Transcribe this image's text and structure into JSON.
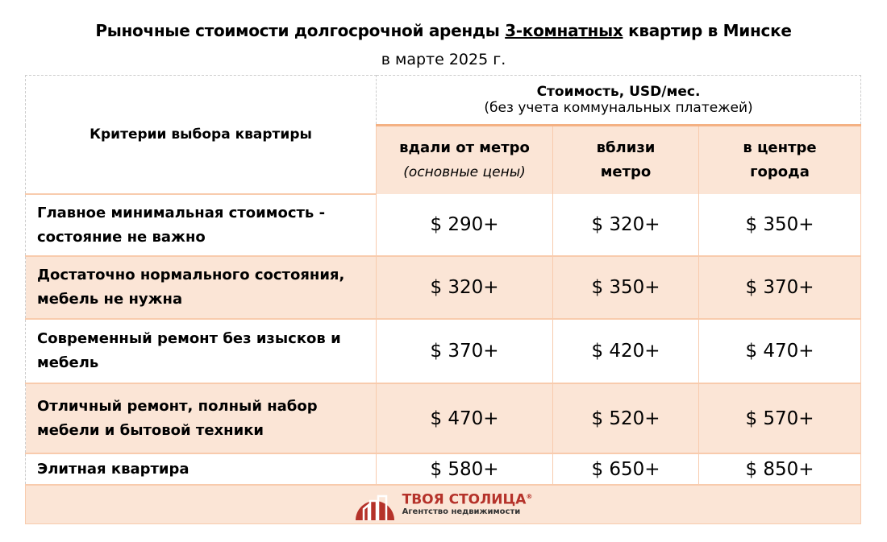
{
  "title": {
    "before": "Рыночные стоимости долгосрочной аренды ",
    "underlined": "3-комнатных",
    "after": " квартир в Минске"
  },
  "subtitle": "в марте 2025 г.",
  "header": {
    "criteria": "Критерии выбора квартиры",
    "price_title": "Стоимость, USD/мес.",
    "price_note": "(без учета коммунальных платежей)",
    "columns": [
      {
        "line1": "вдали от метро",
        "line2": "(основные цены)"
      },
      {
        "line1": "вблизи",
        "line2": "метро"
      },
      {
        "line1": "в центре",
        "line2": "города"
      }
    ]
  },
  "rows": [
    {
      "criteria": "Главное минимальная стоимость - состояние не важно",
      "prices": [
        "$ 290+",
        "$ 320+",
        "$ 350+"
      ]
    },
    {
      "criteria": "Достаточно нормального состояния, мебель не нужна",
      "prices": [
        "$ 320+",
        "$ 350+",
        "$ 370+"
      ]
    },
    {
      "criteria": "Современный ремонт без изысков и мебель",
      "prices": [
        "$ 370+",
        "$ 420+",
        "$ 470+"
      ]
    },
    {
      "criteria": "Отличный ремонт, полный набор мебели и бытовой техники",
      "prices": [
        "$ 470+",
        "$ 520+",
        "$ 570+"
      ]
    },
    {
      "criteria": "Элитная квартира",
      "prices": [
        "$ 580+",
        "$ 650+",
        "$ 850+"
      ]
    }
  ],
  "logo": {
    "brand": "ТВОЯ СТОЛИЦА",
    "mark": "®",
    "tagline": "Агентство недвижимости",
    "color": "#b5322a"
  },
  "colors": {
    "accent_fill": "#fbe5d6",
    "accent_border": "#f4b183"
  }
}
